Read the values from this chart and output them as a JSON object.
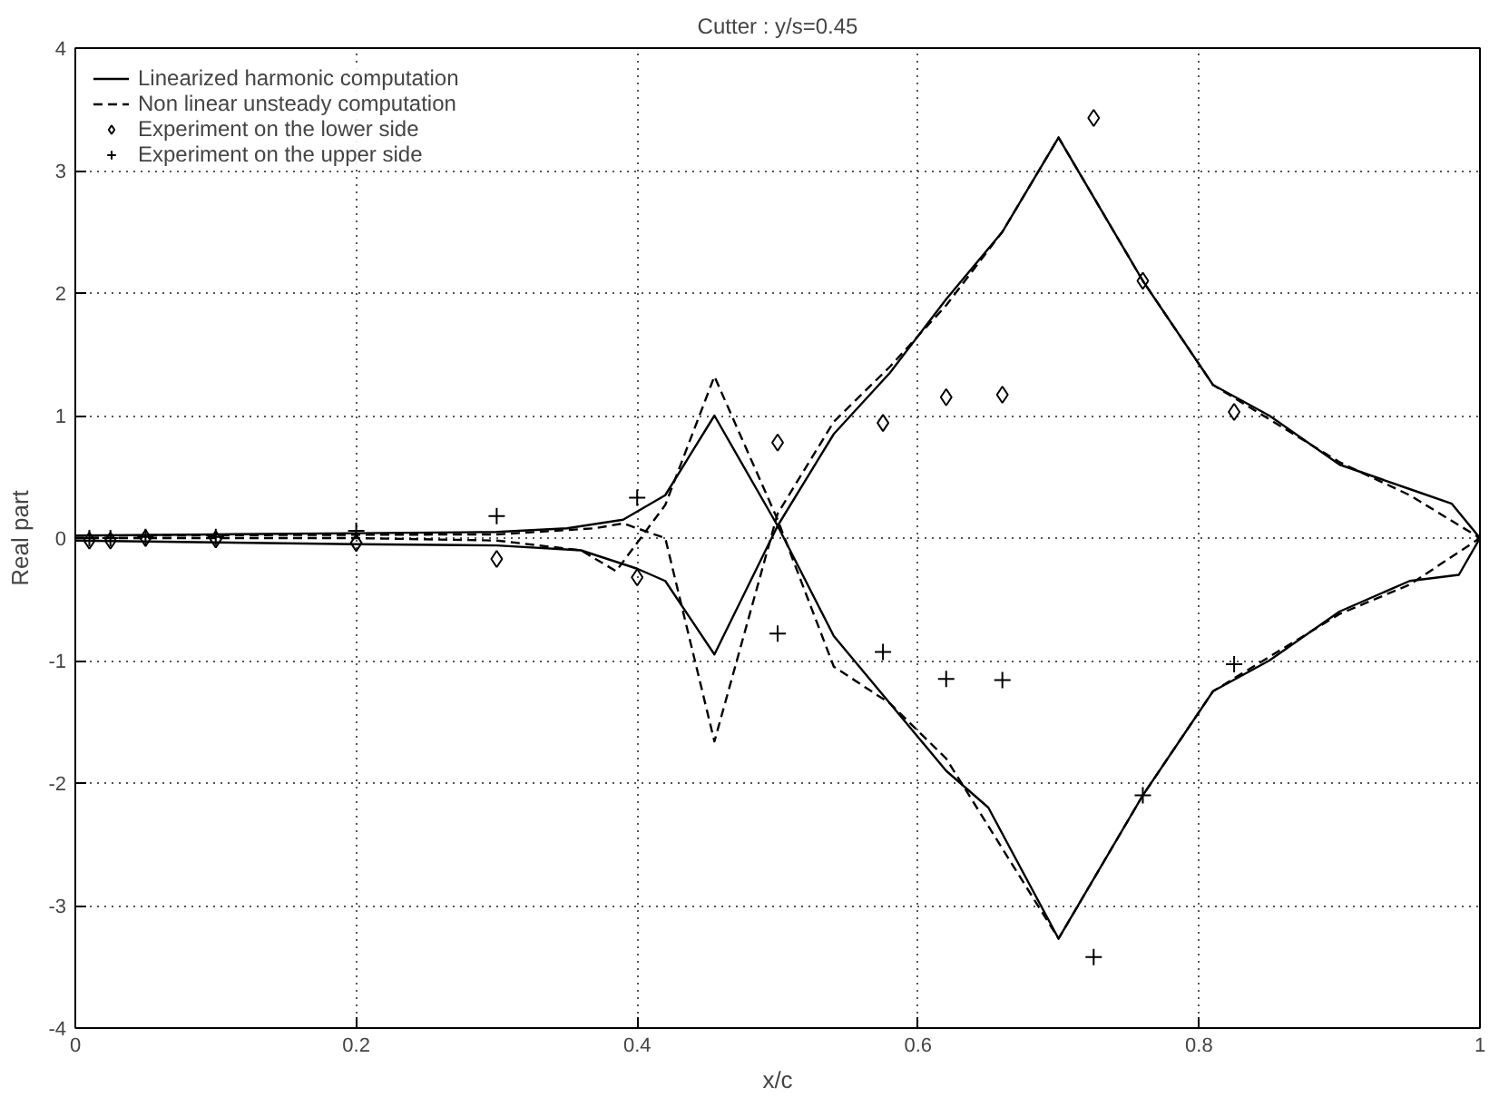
{
  "chart_data": {
    "type": "line",
    "title": "Cutter : y/s=0.45",
    "xlabel": "x/c",
    "ylabel": "Real part",
    "xlim": [
      0,
      1
    ],
    "ylim": [
      -4,
      4
    ],
    "xticks": [
      0,
      0.2,
      0.4,
      0.6,
      0.8,
      1
    ],
    "yticks": [
      -4,
      -3,
      -2,
      -1,
      0,
      1,
      2,
      3,
      4
    ],
    "grid": true,
    "legend": "top left",
    "series": [
      {
        "name": "Linearized harmonic computation",
        "line_style": "solid",
        "color": "#000000",
        "x": [
          0,
          0.1,
          0.2,
          0.3,
          0.35,
          0.39,
          0.42,
          0.455,
          0.5,
          0.54,
          0.58,
          0.62,
          0.65,
          0.7,
          0.76,
          0.81,
          0.85,
          0.9,
          0.95,
          0.985,
          1
        ],
        "values": [
          0.02,
          0.03,
          0.04,
          0.05,
          0.08,
          0.15,
          0.35,
          1.0,
          0.1,
          -0.8,
          -1.35,
          -1.9,
          -2.2,
          -3.27,
          -2.1,
          -1.25,
          -1.0,
          -0.6,
          -0.35,
          -0.3,
          0
        ]
      },
      {
        "line_style": "solid",
        "color": "#000000",
        "x": [
          0,
          0.2,
          0.3,
          0.36,
          0.4,
          0.42,
          0.455,
          0.5,
          0.54,
          0.58,
          0.62,
          0.66,
          0.7,
          0.76,
          0.81,
          0.85,
          0.9,
          0.95,
          0.98,
          1
        ],
        "values": [
          -0.02,
          -0.05,
          -0.06,
          -0.1,
          -0.25,
          -0.35,
          -0.95,
          0.1,
          0.85,
          1.35,
          1.95,
          2.5,
          3.27,
          2.1,
          1.25,
          1.0,
          0.6,
          0.4,
          0.28,
          0
        ]
      },
      {
        "name": "Non linear unsteady computation",
        "line_style": "dashed",
        "color": "#000000",
        "x": [
          0,
          0.2,
          0.3,
          0.36,
          0.385,
          0.42,
          0.455,
          0.5,
          0.54,
          0.58,
          0.62,
          0.7,
          0.76,
          0.81,
          0.9,
          0.95,
          1
        ],
        "values": [
          0,
          0,
          -0.02,
          -0.1,
          -0.27,
          0.27,
          1.32,
          0.15,
          -1.05,
          -1.35,
          -1.8,
          -3.27,
          -2.1,
          -1.25,
          -0.62,
          -0.38,
          0
        ]
      },
      {
        "line_style": "dashed",
        "color": "#000000",
        "x": [
          0,
          0.3,
          0.37,
          0.39,
          0.42,
          0.455,
          0.5,
          0.54,
          0.58,
          0.62,
          0.66,
          0.7,
          0.76,
          0.81,
          0.9,
          0.95,
          1
        ],
        "values": [
          0.02,
          0.03,
          0.08,
          0.12,
          0.0,
          -1.66,
          0.2,
          0.95,
          1.4,
          1.9,
          2.5,
          3.27,
          2.1,
          1.25,
          0.62,
          0.35,
          0
        ]
      },
      {
        "name": "Experiment on the lower side",
        "type": "scatter",
        "marker": "diamond",
        "color": "#000000",
        "x": [
          0.01,
          0.025,
          0.05,
          0.1,
          0.2,
          0.3,
          0.4,
          0.5,
          0.575,
          0.62,
          0.66,
          0.725,
          0.76,
          0.825
        ],
        "values": [
          -0.02,
          -0.02,
          0.0,
          -0.01,
          -0.04,
          -0.17,
          -0.32,
          0.78,
          0.94,
          1.15,
          1.17,
          3.43,
          2.1,
          1.03
        ]
      },
      {
        "name": "Experiment on the upper side",
        "type": "scatter",
        "marker": "cross",
        "color": "#000000",
        "x": [
          0.01,
          0.025,
          0.05,
          0.1,
          0.2,
          0.3,
          0.4,
          0.5,
          0.575,
          0.62,
          0.66,
          0.725,
          0.76,
          0.825
        ],
        "values": [
          0.0,
          0.0,
          0.01,
          0.01,
          0.06,
          0.18,
          0.33,
          -0.78,
          -0.93,
          -1.15,
          -1.16,
          -3.42,
          -2.1,
          -1.03
        ]
      }
    ]
  }
}
